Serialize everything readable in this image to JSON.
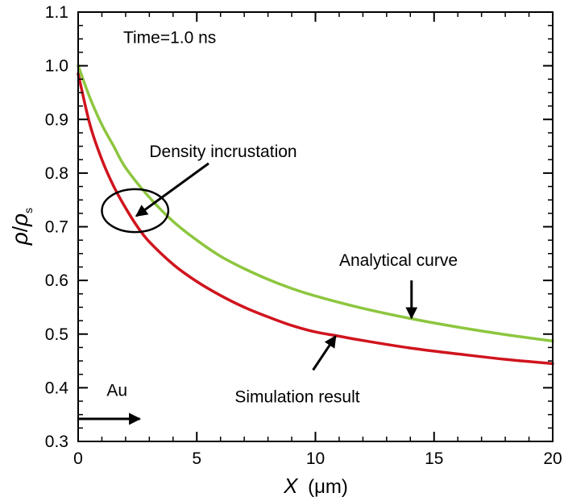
{
  "chart_data": {
    "type": "line",
    "xlim": [
      0,
      20
    ],
    "ylim": [
      0.3,
      1.1
    ],
    "x_ticks": [
      0,
      5,
      10,
      15,
      20
    ],
    "y_ticks": [
      0.3,
      0.4,
      0.5,
      0.6,
      0.7,
      0.8,
      0.9,
      1.0,
      1.1
    ],
    "x_tick_labels": [
      "0",
      "5",
      "10",
      "15",
      "20"
    ],
    "y_tick_labels": [
      "0.3",
      "0.4",
      "0.5",
      "0.6",
      "0.7",
      "0.8",
      "0.9",
      "1.0",
      "1.1"
    ],
    "xlabel": {
      "var": "X",
      "unit": "(μm)"
    },
    "ylabel": {
      "num": "ρ",
      "slash": "/",
      "den": "ρ",
      "sub": "s"
    },
    "grid": false,
    "series": [
      {
        "name": "Analytical curve",
        "color": "#8dc63f",
        "x": [
          0,
          0.5,
          1,
          1.5,
          2,
          3,
          4,
          5,
          6,
          7,
          8,
          9,
          10,
          12,
          14,
          16,
          18,
          20
        ],
        "y": [
          1.0,
          0.94,
          0.89,
          0.85,
          0.81,
          0.755,
          0.71,
          0.675,
          0.645,
          0.622,
          0.602,
          0.585,
          0.571,
          0.548,
          0.529,
          0.513,
          0.499,
          0.487
        ]
      },
      {
        "name": "Simulation result",
        "color": "#d0141e",
        "x": [
          0,
          0.5,
          1,
          1.5,
          2,
          2.5,
          3,
          4,
          5,
          6,
          7,
          8,
          9,
          10,
          11,
          12,
          14,
          16,
          18,
          20
        ],
        "y": [
          0.985,
          0.89,
          0.825,
          0.775,
          0.735,
          0.7,
          0.672,
          0.63,
          0.598,
          0.572,
          0.55,
          0.532,
          0.516,
          0.504,
          0.496,
          0.488,
          0.474,
          0.463,
          0.453,
          0.445
        ]
      }
    ],
    "annotations": [
      {
        "id": "time",
        "text": "Time=1.0 ns",
        "x": 1.9,
        "y": 1.042
      },
      {
        "id": "density",
        "text": "Density incrustation",
        "x": 3.0,
        "y": 0.83,
        "arrow_from": [
          5.5,
          0.818
        ],
        "arrow_to": [
          2.45,
          0.72
        ]
      },
      {
        "id": "analytical",
        "text": "Analytical curve",
        "x": 11.0,
        "y": 0.627,
        "arrow_from": [
          14.05,
          0.6
        ],
        "arrow_to": [
          14.05,
          0.53
        ]
      },
      {
        "id": "simulation",
        "text": "Simulation result",
        "x": 6.6,
        "y": 0.373,
        "arrow_from": [
          9.9,
          0.433
        ],
        "arrow_to": [
          10.85,
          0.496
        ]
      },
      {
        "id": "material",
        "text": "Au",
        "x": 1.2,
        "y": 0.385,
        "arrow_from": [
          0,
          0.342
        ],
        "arrow_to": [
          2.6,
          0.342
        ]
      }
    ],
    "circle": {
      "cx": 2.4,
      "cy": 0.73,
      "rx": 1.4,
      "ry": 0.04
    }
  }
}
